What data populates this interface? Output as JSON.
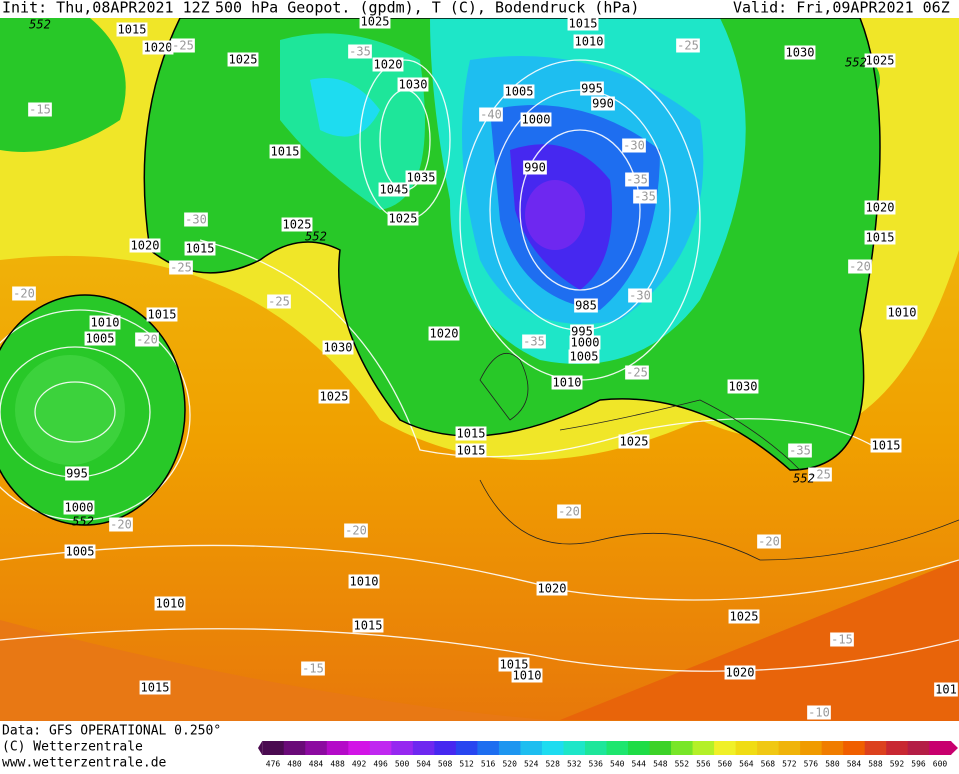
{
  "header": {
    "init": "Init: Thu,08APR2021 12Z",
    "title": "500 hPa Geopot. (gpdm), T (C), Bodendruck (hPa)",
    "valid": "Valid: Fri,09APR2021 06Z"
  },
  "map": {
    "pressure_labels": [
      1015,
      1020,
      1025,
      1025,
      1015,
      1010,
      1030,
      1025,
      1020,
      1030,
      1005,
      995,
      990,
      1000,
      1015,
      1035,
      1045,
      1025,
      1025,
      990,
      1020,
      1015,
      1020,
      1015,
      985,
      1010,
      1010,
      1005,
      1015,
      995,
      1000,
      1005,
      1020,
      1030,
      1010,
      1030,
      1025,
      1015,
      1015,
      1025,
      1015,
      995,
      1000,
      1005,
      1010,
      1020,
      1010,
      1015,
      1025,
      1015,
      1010,
      1020,
      1015,
      101
    ],
    "temperature_labels": [
      -25,
      -15,
      -35,
      -40,
      -30,
      -35,
      -35,
      -30,
      -25,
      -20,
      -25,
      -30,
      -20,
      -35,
      -25,
      -20,
      -25,
      -20,
      -20,
      -20,
      -20,
      -15,
      -15,
      -10,
      -35,
      -25
    ],
    "height_labels": [
      552,
      552,
      552,
      552,
      552
    ]
  },
  "footer": {
    "data": "Data: GFS OPERATIONAL 0.250°",
    "copyright": "(C) Wetterzentrale",
    "url": "www.wetterzentrale.de"
  },
  "colorbar": {
    "labels": [
      476,
      480,
      484,
      488,
      492,
      496,
      500,
      504,
      508,
      512,
      516,
      520,
      524,
      528,
      532,
      536,
      540,
      544,
      548,
      552,
      556,
      560,
      564,
      568,
      572,
      576,
      580,
      584,
      588,
      592,
      596,
      600
    ],
    "colors": [
      "#4a0a50",
      "#6a0a78",
      "#8c0aa0",
      "#b40ac8",
      "#d214e6",
      "#c028f0",
      "#9628f0",
      "#6e28f0",
      "#4628f0",
      "#2846f0",
      "#1e6ef0",
      "#1e96f0",
      "#1ebef0",
      "#1edcf0",
      "#1ee6c8",
      "#1ee69a",
      "#1ee66e",
      "#1edc46",
      "#3cd228",
      "#78e628",
      "#b4f028",
      "#f0f028",
      "#f0dc14",
      "#f0c814",
      "#f0b40a",
      "#f09b00",
      "#f07d00",
      "#f05f00",
      "#dc411e",
      "#c82832",
      "#b41e46",
      "#c8006e"
    ]
  }
}
